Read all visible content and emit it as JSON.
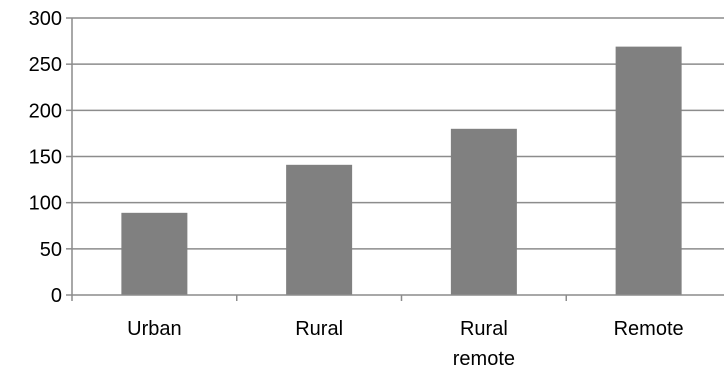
{
  "chart_data": {
    "type": "bar",
    "title": "",
    "xlabel": "",
    "ylabel": "",
    "categories": [
      "Urban",
      "Rural",
      "Rural remote",
      "Remote"
    ],
    "category_label_lines": [
      [
        "Urban"
      ],
      [
        "Rural"
      ],
      [
        "Rural",
        "remote"
      ],
      [
        "Remote"
      ]
    ],
    "values": [
      89,
      141,
      180,
      269
    ],
    "ylim": [
      0,
      300
    ],
    "yticks": [
      0,
      50,
      100,
      150,
      200,
      250,
      300
    ],
    "grid": true,
    "legend": "none",
    "colors": {
      "bar": "#808080",
      "grid": "#8c8c8c",
      "axis": "#8c8c8c",
      "text": "#000000"
    }
  }
}
